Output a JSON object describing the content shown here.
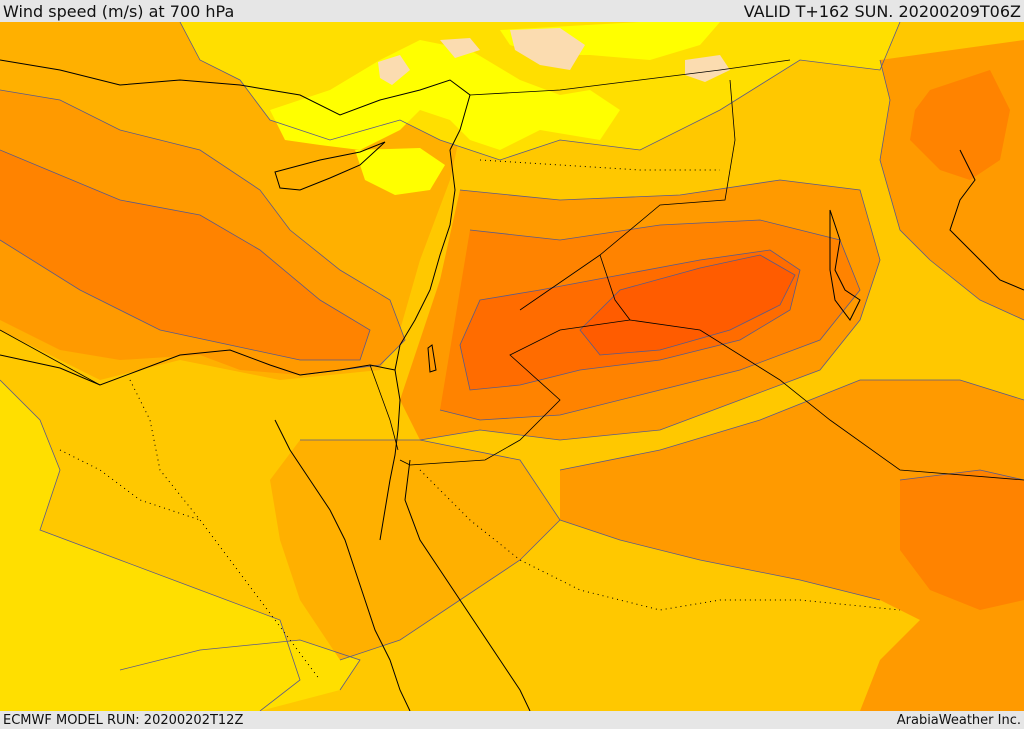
{
  "header": {
    "title": "Wind speed (m/s) at 700 hPa",
    "valid": "VALID T+162 SUN. 20200209T06Z"
  },
  "footer": {
    "model_run": "ECMWF MODEL RUN: 20200202T12Z",
    "credit": "ArabiaWeather Inc."
  },
  "map": {
    "parameter": "wind-speed-700hPa",
    "colors": {
      "very_light": "#fbdcb0",
      "light_yellow": "#ffff00",
      "yellow": "#ffdf00",
      "yellow_orange": "#ffc800",
      "light_orange": "#ffb000",
      "orange": "#ff9a00",
      "dark_orange": "#ff8300",
      "red_orange": "#ff6c00",
      "deep_red_orange": "#ff5c00",
      "coast_line": "#000000",
      "contour_line": "#5a5a8a"
    }
  }
}
